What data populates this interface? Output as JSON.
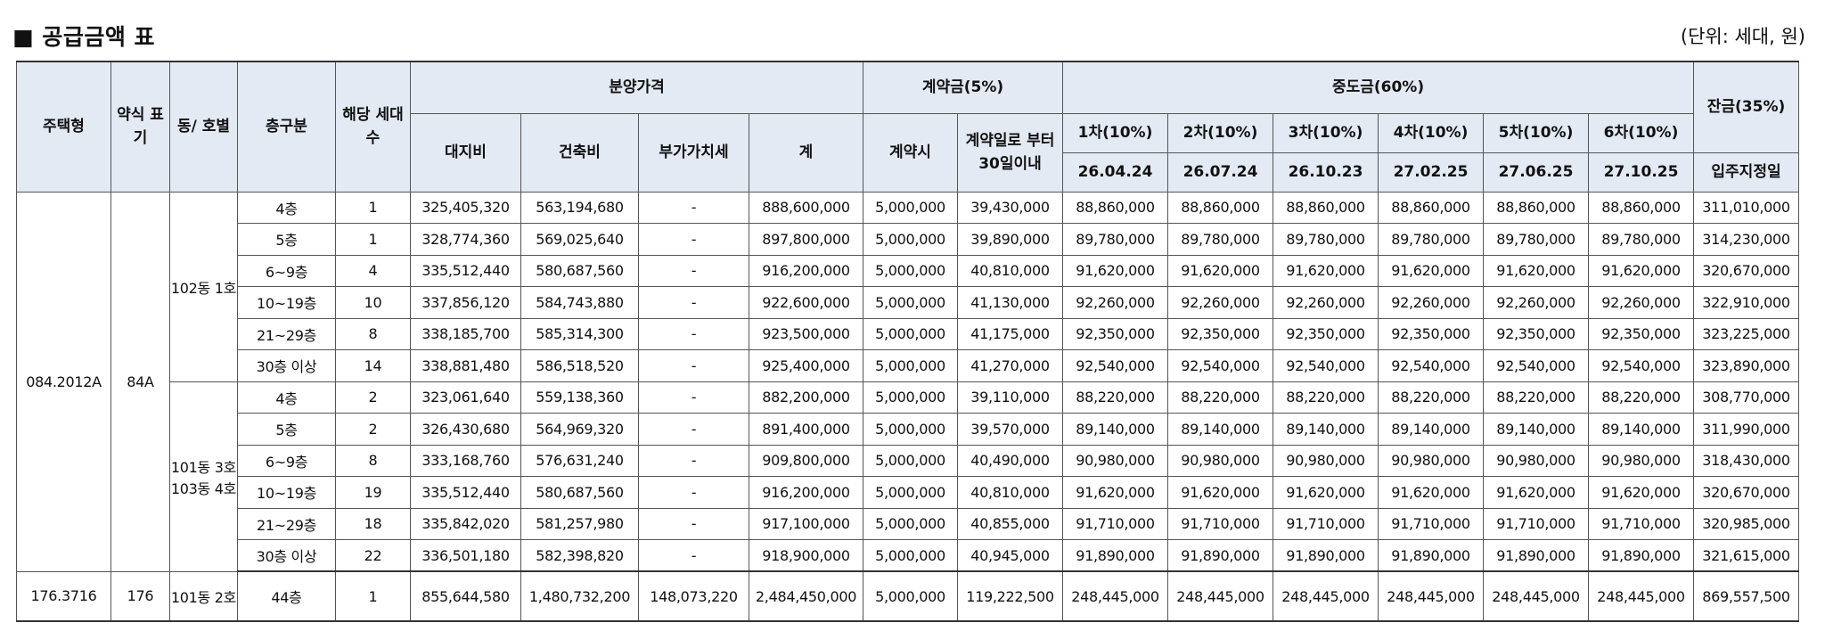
{
  "header": {
    "title": "■ 공급금액 표",
    "unit": "(단위: 세대, 원)"
  },
  "table": {
    "h": {
      "type": "주택형",
      "abbr": "약식 표기",
      "dong": "동/ 호별",
      "floor": "층구분",
      "households": "해당 세대수",
      "sale_price": "분양가격",
      "contract": "계약금(5%)",
      "middle": "중도금(60%)",
      "balance": "잔금(35%)",
      "land": "대지비",
      "building": "건축비",
      "vat": "부가가치세",
      "total": "계",
      "at_contract": "계약시",
      "within30": "계약일로 부터 30일이내",
      "m1": "1차(10%)",
      "m2": "2차(10%)",
      "m3": "3차(10%)",
      "m4": "4차(10%)",
      "m5": "5차(10%)",
      "m6": "6차(10%)",
      "d1": "26.04.24",
      "d2": "26.07.24",
      "d3": "26.10.23",
      "d4": "27.02.25",
      "d5": "27.06.25",
      "d6": "27.10.25",
      "move_in": "입주지정일"
    },
    "groups": {
      "g1_type": "084.2012A",
      "g1_abbr": "84A",
      "g1_dong_a": "102동 1호",
      "g1_dong_b": "101동 3호 103동 4호",
      "g2_type": "176.3716",
      "g2_abbr": "176",
      "g2_dong": "101동 2호"
    },
    "rows": [
      [
        "4층",
        "1",
        "325,405,320",
        "563,194,680",
        "-",
        "888,600,000",
        "5,000,000",
        "39,430,000",
        "88,860,000",
        "88,860,000",
        "88,860,000",
        "88,860,000",
        "88,860,000",
        "88,860,000",
        "311,010,000"
      ],
      [
        "5층",
        "1",
        "328,774,360",
        "569,025,640",
        "-",
        "897,800,000",
        "5,000,000",
        "39,890,000",
        "89,780,000",
        "89,780,000",
        "89,780,000",
        "89,780,000",
        "89,780,000",
        "89,780,000",
        "314,230,000"
      ],
      [
        "6~9층",
        "4",
        "335,512,440",
        "580,687,560",
        "-",
        "916,200,000",
        "5,000,000",
        "40,810,000",
        "91,620,000",
        "91,620,000",
        "91,620,000",
        "91,620,000",
        "91,620,000",
        "91,620,000",
        "320,670,000"
      ],
      [
        "10~19층",
        "10",
        "337,856,120",
        "584,743,880",
        "-",
        "922,600,000",
        "5,000,000",
        "41,130,000",
        "92,260,000",
        "92,260,000",
        "92,260,000",
        "92,260,000",
        "92,260,000",
        "92,260,000",
        "322,910,000"
      ],
      [
        "21~29층",
        "8",
        "338,185,700",
        "585,314,300",
        "-",
        "923,500,000",
        "5,000,000",
        "41,175,000",
        "92,350,000",
        "92,350,000",
        "92,350,000",
        "92,350,000",
        "92,350,000",
        "92,350,000",
        "323,225,000"
      ],
      [
        "30층 이상",
        "14",
        "338,881,480",
        "586,518,520",
        "-",
        "925,400,000",
        "5,000,000",
        "41,270,000",
        "92,540,000",
        "92,540,000",
        "92,540,000",
        "92,540,000",
        "92,540,000",
        "92,540,000",
        "323,890,000"
      ],
      [
        "4층",
        "2",
        "323,061,640",
        "559,138,360",
        "-",
        "882,200,000",
        "5,000,000",
        "39,110,000",
        "88,220,000",
        "88,220,000",
        "88,220,000",
        "88,220,000",
        "88,220,000",
        "88,220,000",
        "308,770,000"
      ],
      [
        "5층",
        "2",
        "326,430,680",
        "564,969,320",
        "-",
        "891,400,000",
        "5,000,000",
        "39,570,000",
        "89,140,000",
        "89,140,000",
        "89,140,000",
        "89,140,000",
        "89,140,000",
        "89,140,000",
        "311,990,000"
      ],
      [
        "6~9층",
        "8",
        "333,168,760",
        "576,631,240",
        "-",
        "909,800,000",
        "5,000,000",
        "40,490,000",
        "90,980,000",
        "90,980,000",
        "90,980,000",
        "90,980,000",
        "90,980,000",
        "90,980,000",
        "318,430,000"
      ],
      [
        "10~19층",
        "19",
        "335,512,440",
        "580,687,560",
        "-",
        "916,200,000",
        "5,000,000",
        "40,810,000",
        "91,620,000",
        "91,620,000",
        "91,620,000",
        "91,620,000",
        "91,620,000",
        "91,620,000",
        "320,670,000"
      ],
      [
        "21~29층",
        "18",
        "335,842,020",
        "581,257,980",
        "-",
        "917,100,000",
        "5,000,000",
        "40,855,000",
        "91,710,000",
        "91,710,000",
        "91,710,000",
        "91,710,000",
        "91,710,000",
        "91,710,000",
        "320,985,000"
      ],
      [
        "30층 이상",
        "22",
        "336,501,180",
        "582,398,820",
        "-",
        "918,900,000",
        "5,000,000",
        "40,945,000",
        "91,890,000",
        "91,890,000",
        "91,890,000",
        "91,890,000",
        "91,890,000",
        "91,890,000",
        "321,615,000"
      ],
      [
        "44층",
        "1",
        "855,644,580",
        "1,480,732,200",
        "148,073,220",
        "2,484,450,000",
        "5,000,000",
        "119,222,500",
        "248,445,000",
        "248,445,000",
        "248,445,000",
        "248,445,000",
        "248,445,000",
        "248,445,000",
        "869,557,500"
      ]
    ]
  }
}
